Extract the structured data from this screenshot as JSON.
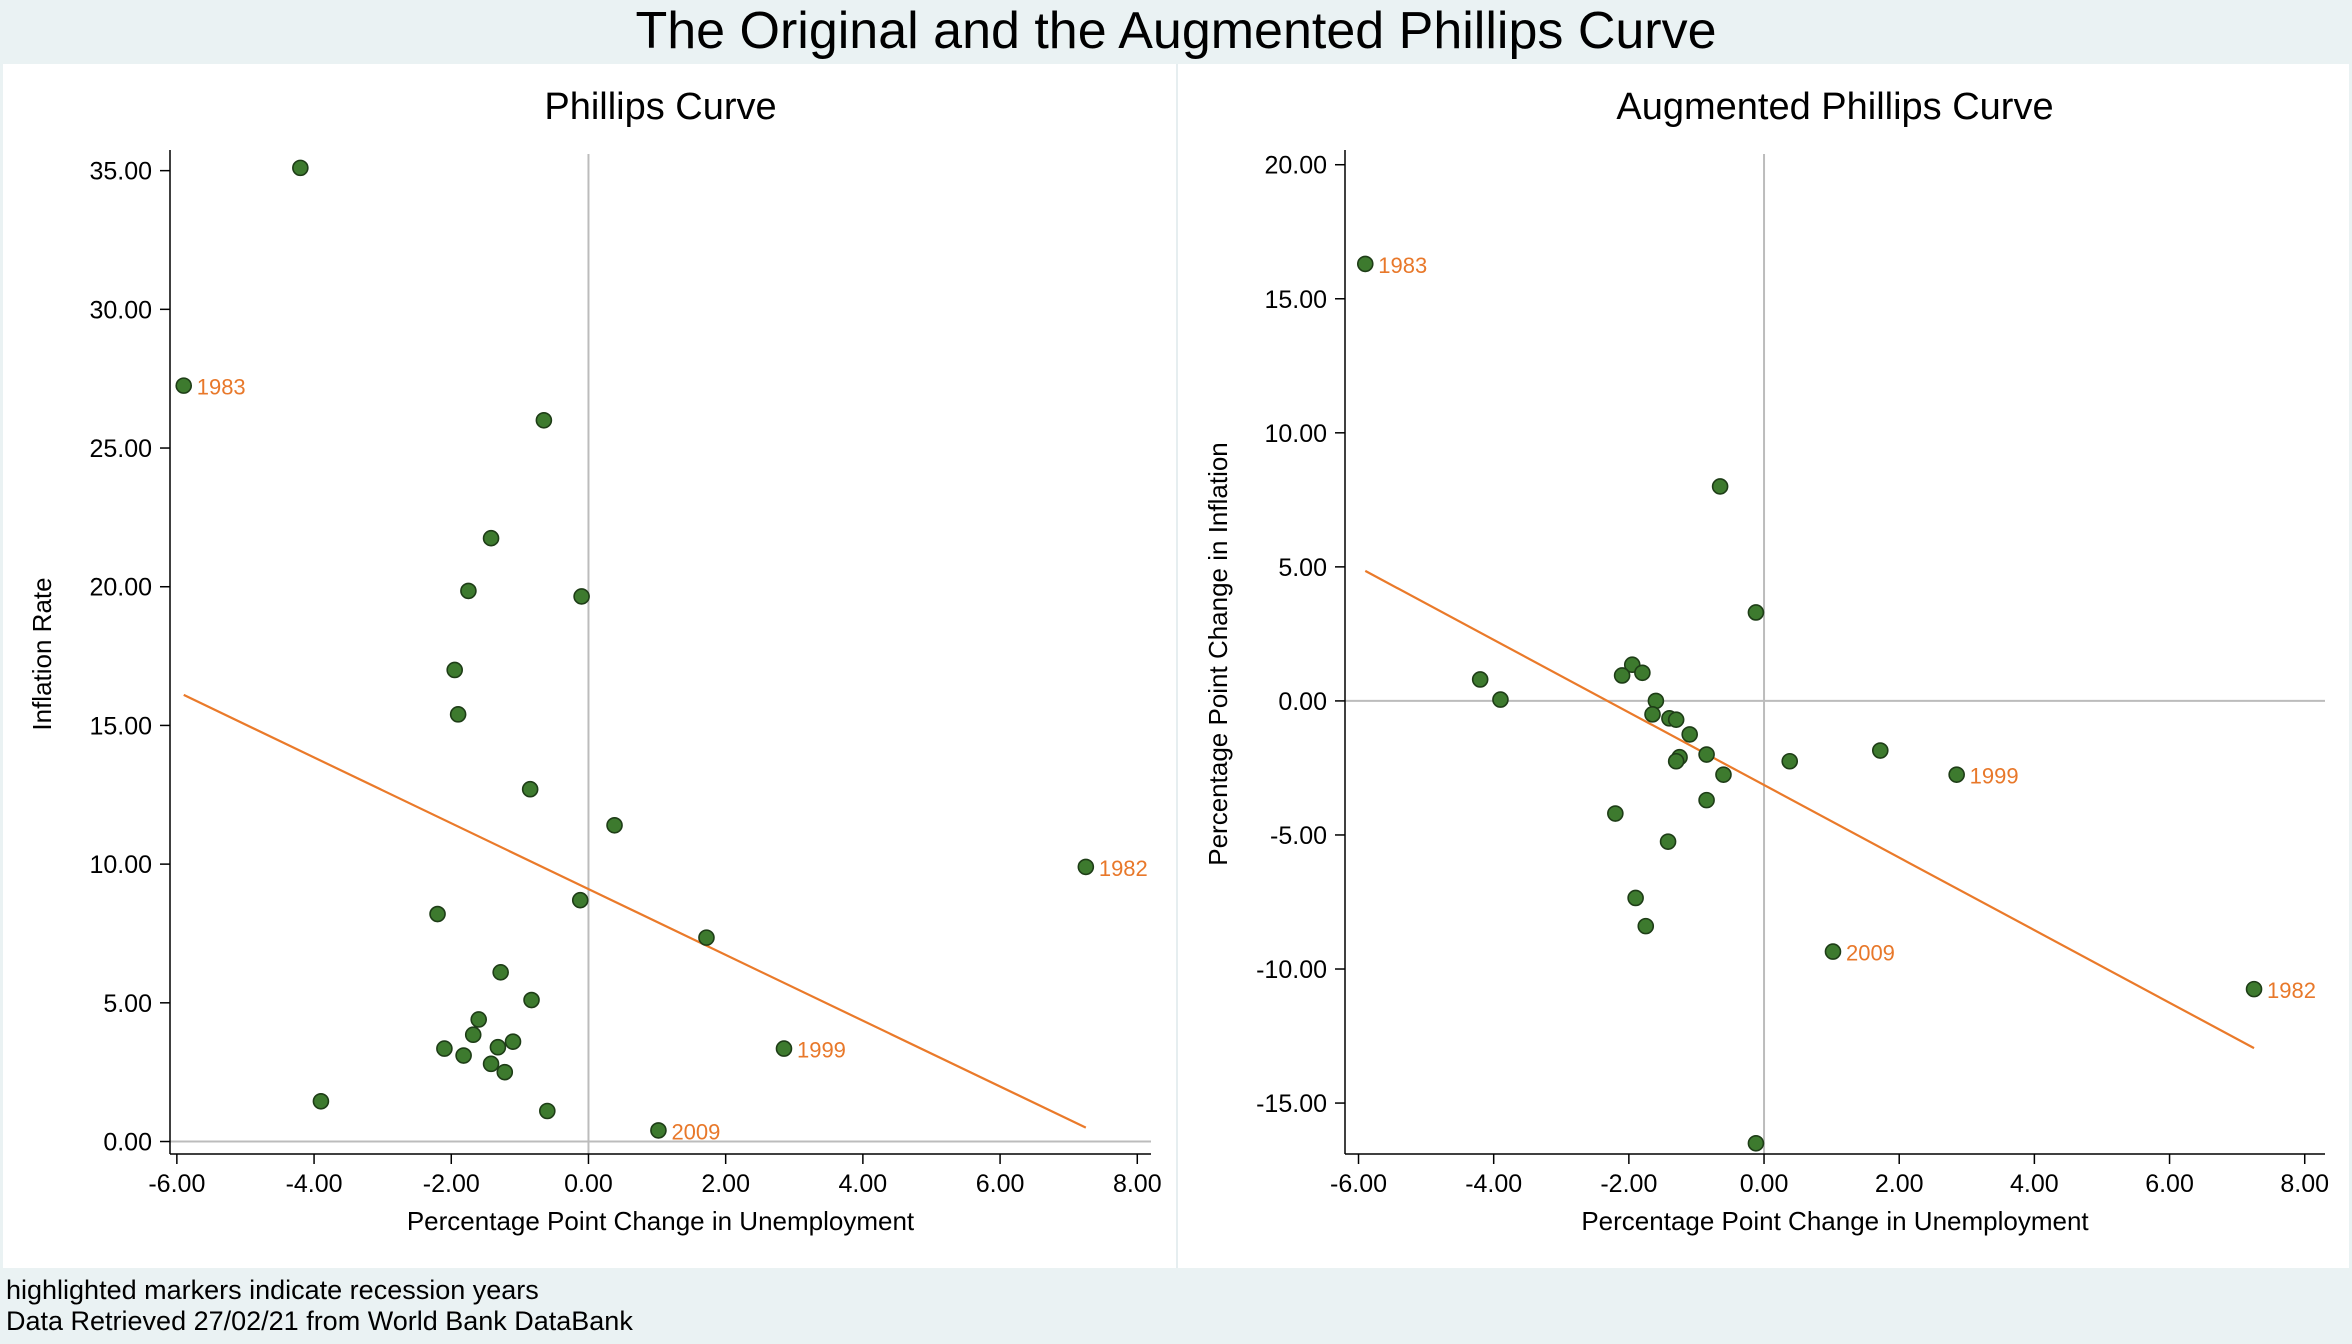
{
  "title": "The Original and the Augmented Phillips Curve",
  "notes": [
    "highlighted markers indicate recession years",
    "Data Retrieved 27/02/21 from World Bank DataBank"
  ],
  "colors": {
    "marker_fill": "#3d7a2e",
    "marker_stroke": "#1e3d17",
    "fit_line": "#ea7a2a",
    "label_text": "#e8782a",
    "ref_line": "#bcbcbc",
    "axis": "#000000",
    "background": "#ffffff",
    "outer_background": "#eaf2f3"
  },
  "chart_data": [
    {
      "type": "scatter",
      "title": "Phillips Curve",
      "xlabel": "Percentage Point Change in Unemployment",
      "ylabel": "Inflation Rate",
      "xlim": [
        -6.1,
        8.2
      ],
      "ylim": [
        -0.45,
        35.6
      ],
      "xticks": [
        "-6.00",
        "-4.00",
        "-2.00",
        "0.00",
        "2.00",
        "4.00",
        "6.00",
        "8.00"
      ],
      "xtick_values": [
        -6,
        -4,
        -2,
        0,
        2,
        4,
        6,
        8
      ],
      "yticks": [
        "0.00",
        "5.00",
        "10.00",
        "15.00",
        "20.00",
        "25.00",
        "30.00",
        "35.00"
      ],
      "ytick_values": [
        0,
        5,
        10,
        15,
        20,
        25,
        30,
        35
      ],
      "reference_lines": {
        "x": 0,
        "y": 0
      },
      "grid": false,
      "fit_line": [
        {
          "x": -5.9,
          "y": 16.1
        },
        {
          "x": 7.25,
          "y": 0.5
        }
      ],
      "points": [
        {
          "x": -4.2,
          "y": 35.1
        },
        {
          "x": -5.9,
          "y": 27.25,
          "label": "1983"
        },
        {
          "x": -0.65,
          "y": 26.0
        },
        {
          "x": -1.42,
          "y": 21.75
        },
        {
          "x": -1.75,
          "y": 19.85
        },
        {
          "x": -0.1,
          "y": 19.65
        },
        {
          "x": -1.95,
          "y": 17.0
        },
        {
          "x": -1.9,
          "y": 15.4
        },
        {
          "x": -0.85,
          "y": 12.7
        },
        {
          "x": 0.38,
          "y": 11.4
        },
        {
          "x": 7.25,
          "y": 9.9,
          "label": "1982"
        },
        {
          "x": -0.12,
          "y": 8.7
        },
        {
          "x": -2.2,
          "y": 8.2
        },
        {
          "x": 1.72,
          "y": 7.35
        },
        {
          "x": -1.28,
          "y": 6.1
        },
        {
          "x": -0.83,
          "y": 5.1
        },
        {
          "x": -1.6,
          "y": 4.4
        },
        {
          "x": -1.68,
          "y": 3.85
        },
        {
          "x": -1.1,
          "y": 3.6
        },
        {
          "x": -1.32,
          "y": 3.4
        },
        {
          "x": -2.1,
          "y": 3.35
        },
        {
          "x": 2.85,
          "y": 3.35,
          "label": "1999"
        },
        {
          "x": -1.82,
          "y": 3.1
        },
        {
          "x": -1.42,
          "y": 2.8
        },
        {
          "x": -1.22,
          "y": 2.5
        },
        {
          "x": -3.9,
          "y": 1.45
        },
        {
          "x": -0.6,
          "y": 1.1
        },
        {
          "x": 1.02,
          "y": 0.4,
          "label": "2009"
        }
      ]
    },
    {
      "type": "scatter",
      "title": "Augmented Phillips Curve",
      "xlabel": "Percentage Point Change in Unemployment",
      "ylabel": "Percentage Point Change in Inflation",
      "xlim": [
        -6.2,
        8.3
      ],
      "ylim": [
        -16.9,
        20.4
      ],
      "xticks": [
        "-6.00",
        "-4.00",
        "-2.00",
        "0.00",
        "2.00",
        "4.00",
        "6.00",
        "8.00"
      ],
      "xtick_values": [
        -6,
        -4,
        -2,
        0,
        2,
        4,
        6,
        8
      ],
      "yticks": [
        "-15.00",
        "-10.00",
        "-5.00",
        "0.00",
        "5.00",
        "10.00",
        "15.00",
        "20.00"
      ],
      "ytick_values": [
        -15,
        -10,
        -5,
        0,
        5,
        10,
        15,
        20
      ],
      "reference_lines": {
        "x": 0,
        "y": 0
      },
      "grid": false,
      "fit_line": [
        {
          "x": -5.9,
          "y": 4.85
        },
        {
          "x": 7.25,
          "y": -12.95
        }
      ],
      "points": [
        {
          "x": -5.9,
          "y": 16.3,
          "label": "1983"
        },
        {
          "x": -0.65,
          "y": 8.0
        },
        {
          "x": -0.12,
          "y": 3.3
        },
        {
          "x": -4.2,
          "y": 0.8
        },
        {
          "x": -3.9,
          "y": 0.05
        },
        {
          "x": -1.95,
          "y": 1.35
        },
        {
          "x": -1.8,
          "y": 1.05
        },
        {
          "x": -2.1,
          "y": 0.95
        },
        {
          "x": -1.6,
          "y": 0.0
        },
        {
          "x": -1.65,
          "y": -0.5
        },
        {
          "x": -1.4,
          "y": -0.65
        },
        {
          "x": -1.3,
          "y": -0.7
        },
        {
          "x": -1.1,
          "y": -1.25
        },
        {
          "x": -0.85,
          "y": -2.0
        },
        {
          "x": -1.25,
          "y": -2.1
        },
        {
          "x": -1.3,
          "y": -2.25
        },
        {
          "x": 1.72,
          "y": -1.85
        },
        {
          "x": 0.38,
          "y": -2.25
        },
        {
          "x": -0.6,
          "y": -2.75
        },
        {
          "x": 2.85,
          "y": -2.75,
          "label": "1999"
        },
        {
          "x": -0.85,
          "y": -3.7
        },
        {
          "x": -2.2,
          "y": -4.2
        },
        {
          "x": -1.42,
          "y": -5.25
        },
        {
          "x": -1.9,
          "y": -7.35
        },
        {
          "x": -1.75,
          "y": -8.4
        },
        {
          "x": 1.02,
          "y": -9.35,
          "label": "2009"
        },
        {
          "x": 7.25,
          "y": -10.75,
          "label": "1982"
        },
        {
          "x": -0.12,
          "y": -16.5
        }
      ]
    }
  ]
}
